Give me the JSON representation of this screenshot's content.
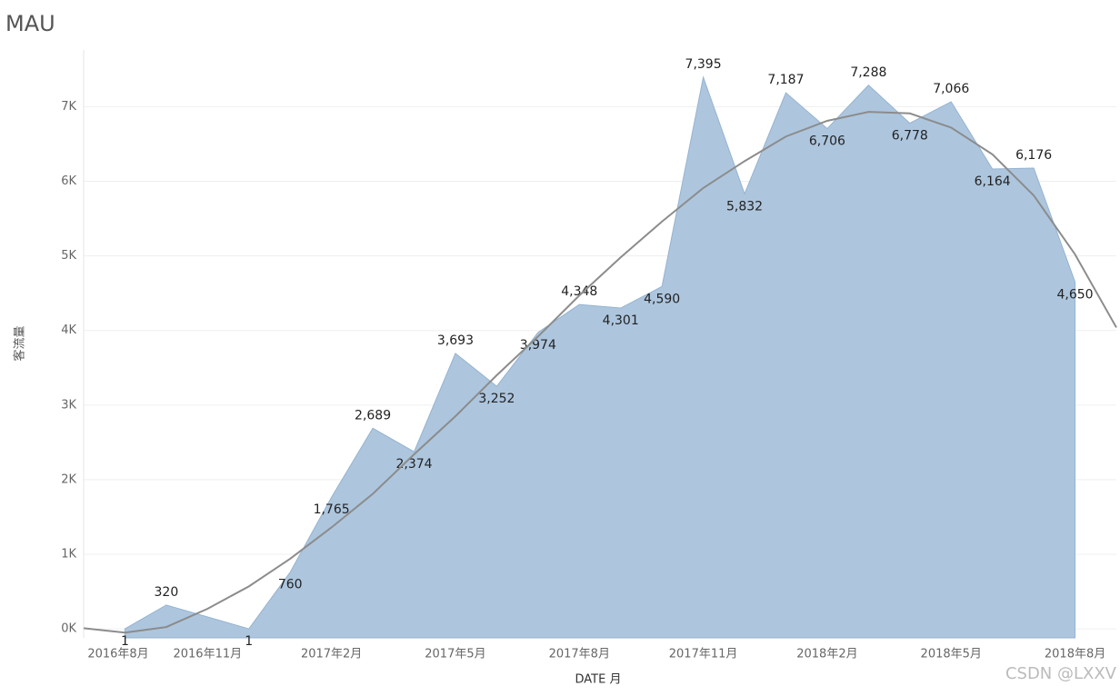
{
  "chart_data": {
    "type": "area",
    "title": "MAU",
    "x_label": "DATE 月",
    "y_label": "客流量",
    "watermark": "CSDN @LXXV",
    "x": [
      "2016-09",
      "2016-10",
      "2016-12",
      "2017-01",
      "2017-02",
      "2017-03",
      "2017-04",
      "2017-05",
      "2017-06",
      "2017-07",
      "2017-08",
      "2017-09",
      "2017-10",
      "2017-11",
      "2017-12",
      "2018-01",
      "2018-02",
      "2018-03",
      "2018-04",
      "2018-05",
      "2018-06",
      "2018-07",
      "2018-08"
    ],
    "series": [
      {
        "name": "客流量",
        "color": "#a9c3dc",
        "values": [
          1,
          320,
          1,
          760,
          1765,
          2689,
          2374,
          3693,
          3252,
          3974,
          4348,
          4301,
          4590,
          7395,
          5832,
          7187,
          6706,
          7288,
          6778,
          7066,
          6164,
          6176,
          4650
        ],
        "value_labels": [
          "1",
          "320",
          "1",
          "760",
          "1,765",
          "2,689",
          "2,374",
          "3,693",
          "3,252",
          "3,974",
          "4,348",
          "4,301",
          "4,590",
          "7,395",
          "5,832",
          "7,187",
          "6,706",
          "7,288",
          "6,778",
          "7,066",
          "6,164",
          "6,176",
          "4,650"
        ]
      }
    ],
    "trend_line": {
      "color": "#8c8c8c",
      "x": [
        "2016-08",
        "2016-09",
        "2016-10",
        "2016-11",
        "2016-12",
        "2017-01",
        "2017-02",
        "2017-03",
        "2017-04",
        "2017-05",
        "2017-06",
        "2017-07",
        "2017-08",
        "2017-09",
        "2017-10",
        "2017-11",
        "2017-12",
        "2018-01",
        "2018-02",
        "2018-03",
        "2018-04",
        "2018-05",
        "2018-06",
        "2018-07",
        "2018-08",
        "2018-09"
      ],
      "values": [
        10,
        -50,
        25,
        270,
        570,
        940,
        1360,
        1810,
        2340,
        2850,
        3400,
        3920,
        4470,
        4980,
        5460,
        5910,
        6270,
        6600,
        6810,
        6930,
        6910,
        6720,
        6360,
        5810,
        5020,
        4040
      ]
    },
    "xlim": [
      "2016-08",
      "2018-09"
    ],
    "xticks": [
      {
        "value": "2016-08",
        "label": "2016年8月"
      },
      {
        "value": "2016-11",
        "label": "2016年11月"
      },
      {
        "value": "2017-02",
        "label": "2017年2月"
      },
      {
        "value": "2017-05",
        "label": "2017年5月"
      },
      {
        "value": "2017-08",
        "label": "2017年8月"
      },
      {
        "value": "2017-11",
        "label": "2017年11月"
      },
      {
        "value": "2018-02",
        "label": "2018年2月"
      },
      {
        "value": "2018-05",
        "label": "2018年5月"
      },
      {
        "value": "2018-08",
        "label": "2018年8月"
      }
    ],
    "ylim": [
      -120,
      7760
    ],
    "yticks": [
      {
        "value": 0,
        "label": "0K"
      },
      {
        "value": 1000,
        "label": "1K"
      },
      {
        "value": 2000,
        "label": "2K"
      },
      {
        "value": 3000,
        "label": "3K"
      },
      {
        "value": 4000,
        "label": "4K"
      },
      {
        "value": 5000,
        "label": "5K"
      },
      {
        "value": 6000,
        "label": "6K"
      },
      {
        "value": 7000,
        "label": "7K"
      }
    ],
    "grid": true
  }
}
